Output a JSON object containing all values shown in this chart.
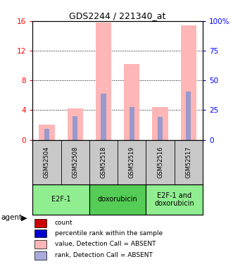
{
  "title": "GDS2244 / 221340_at",
  "samples": [
    "GSM52504",
    "GSM52508",
    "GSM52518",
    "GSM52519",
    "GSM52516",
    "GSM52517"
  ],
  "pink_heights": [
    2.0,
    4.2,
    15.8,
    10.2,
    4.4,
    15.4
  ],
  "blue_heights": [
    1.5,
    3.2,
    6.2,
    4.4,
    3.1,
    6.5
  ],
  "ylim_left": [
    0,
    16
  ],
  "ylim_right": [
    0,
    100
  ],
  "yticks_left": [
    0,
    4,
    8,
    12,
    16
  ],
  "ytick_labels_left": [
    "0",
    "4",
    "8",
    "12",
    "16"
  ],
  "ytick_labels_right": [
    "0",
    "25",
    "50",
    "75",
    "100%"
  ],
  "groups": [
    {
      "label": "E2F-1",
      "cols": [
        0,
        1
      ],
      "color": "#90EE90"
    },
    {
      "label": "doxorubicin",
      "cols": [
        2,
        3
      ],
      "color": "#55CC55"
    },
    {
      "label": "E2F-1 and\ndoxorubicin",
      "cols": [
        4,
        5
      ],
      "color": "#90EE90"
    }
  ],
  "bar_width": 0.55,
  "blue_bar_width": 0.18,
  "pink_color": "#FFB6B6",
  "blue_color": "#9999CC",
  "sample_bg_color": "#C8C8C8",
  "legend_items": [
    {
      "color": "#CC0000",
      "label": "count"
    },
    {
      "color": "#0000CC",
      "label": "percentile rank within the sample"
    },
    {
      "color": "#FFB6B6",
      "label": "value, Detection Call = ABSENT"
    },
    {
      "color": "#AAAADD",
      "label": "rank, Detection Call = ABSENT"
    }
  ],
  "agent_label": "agent"
}
